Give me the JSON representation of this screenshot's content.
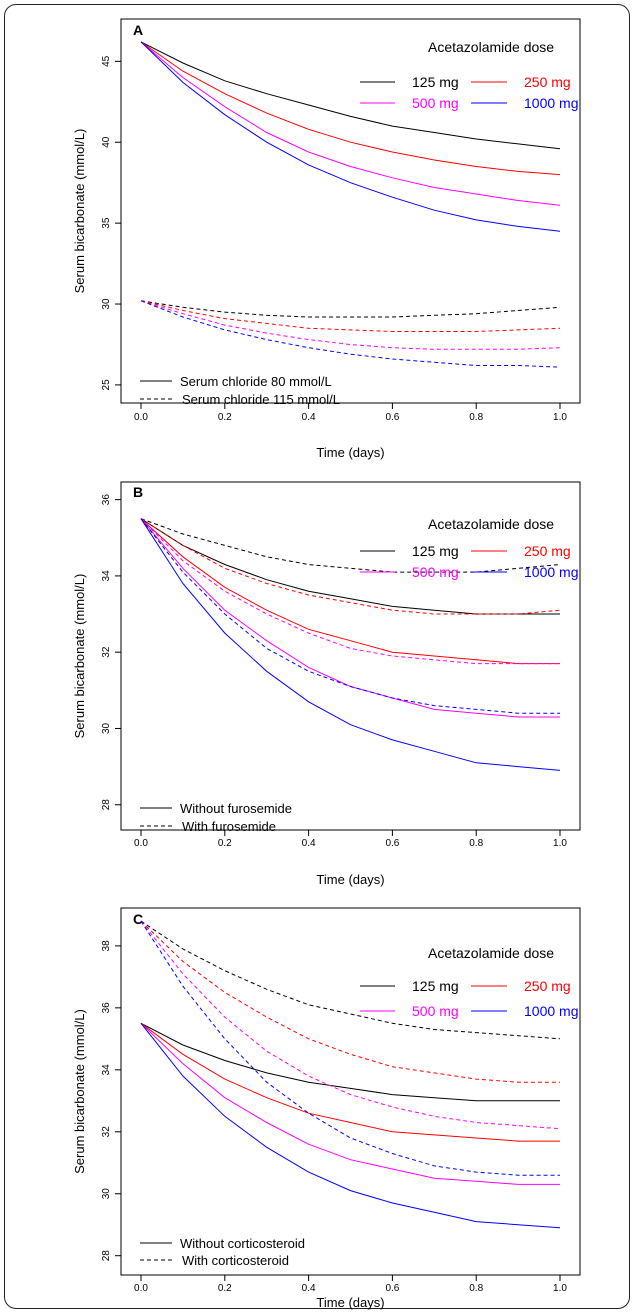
{
  "chart_data": [
    {
      "type": "line",
      "panel": "A",
      "xlabel": "Time (days)",
      "ylabel": "Serum bicarbonate (mmol/L)",
      "xlim": [
        0,
        1
      ],
      "ylim": [
        24.5,
        47.0
      ],
      "xticks": [
        "0.0",
        "0.2",
        "0.4",
        "0.6",
        "0.8",
        "1.0"
      ],
      "yticks": [
        25,
        30,
        35,
        40,
        45
      ],
      "legend_title": "Acetazolamide dose",
      "dose_legend": [
        {
          "label": "125 mg",
          "color": "#000000"
        },
        {
          "label": "250 mg",
          "color": "#ff0000"
        },
        {
          "label": "500 mg",
          "color": "#ff00ff"
        },
        {
          "label": "1000 mg",
          "color": "#0000ff"
        }
      ],
      "style_legend": [
        {
          "label": "Serum chloride 80 mmol/L",
          "dash": "solid"
        },
        {
          "label": "Serum chloride 115 mmol/L",
          "dash": "dashed"
        }
      ],
      "x": [
        0,
        0.1,
        0.2,
        0.3,
        0.4,
        0.5,
        0.6,
        0.7,
        0.8,
        0.9,
        1.0
      ],
      "series": [
        {
          "name": "125 mg",
          "style": "solid",
          "color": "#000000",
          "values": [
            46.2,
            44.9,
            43.8,
            43.0,
            42.3,
            41.6,
            41.0,
            40.6,
            40.2,
            39.9,
            39.6
          ]
        },
        {
          "name": "250 mg",
          "style": "solid",
          "color": "#ff0000",
          "values": [
            46.2,
            44.4,
            43.0,
            41.8,
            40.8,
            40.0,
            39.4,
            38.9,
            38.5,
            38.2,
            38.0
          ]
        },
        {
          "name": "500 mg",
          "style": "solid",
          "color": "#ff00ff",
          "values": [
            46.2,
            44.0,
            42.2,
            40.6,
            39.4,
            38.5,
            37.8,
            37.2,
            36.8,
            36.4,
            36.1
          ]
        },
        {
          "name": "1000 mg",
          "style": "solid",
          "color": "#0000ff",
          "values": [
            46.2,
            43.7,
            41.7,
            40.0,
            38.6,
            37.5,
            36.6,
            35.8,
            35.2,
            34.8,
            34.5
          ]
        },
        {
          "name": "125 mg",
          "style": "dashed",
          "color": "#000000",
          "values": [
            30.2,
            29.8,
            29.5,
            29.3,
            29.2,
            29.2,
            29.2,
            29.3,
            29.4,
            29.6,
            29.8
          ]
        },
        {
          "name": "250 mg",
          "style": "dashed",
          "color": "#ff0000",
          "values": [
            30.2,
            29.6,
            29.1,
            28.8,
            28.5,
            28.4,
            28.3,
            28.3,
            28.3,
            28.4,
            28.5
          ]
        },
        {
          "name": "500 mg",
          "style": "dashed",
          "color": "#ff00ff",
          "values": [
            30.2,
            29.4,
            28.7,
            28.2,
            27.8,
            27.5,
            27.3,
            27.2,
            27.2,
            27.2,
            27.3
          ]
        },
        {
          "name": "1000 mg",
          "style": "dashed",
          "color": "#0000ff",
          "values": [
            30.2,
            29.2,
            28.4,
            27.8,
            27.3,
            26.9,
            26.6,
            26.4,
            26.2,
            26.2,
            26.1
          ]
        }
      ]
    },
    {
      "type": "line",
      "panel": "B",
      "xlabel": "Time (days)",
      "ylabel": "Serum bicarbonate (mmol/L)",
      "xlim": [
        0,
        1
      ],
      "ylim": [
        27.6,
        36.2
      ],
      "xticks": [
        "0.0",
        "0.2",
        "0.4",
        "0.6",
        "0.8",
        "1.0"
      ],
      "yticks": [
        28,
        30,
        32,
        34,
        36
      ],
      "legend_title": "Acetazolamide dose",
      "dose_legend": [
        {
          "label": "125 mg",
          "color": "#000000"
        },
        {
          "label": "250 mg",
          "color": "#ff0000"
        },
        {
          "label": "500 mg",
          "color": "#ff00ff"
        },
        {
          "label": "1000 mg",
          "color": "#0000ff"
        }
      ],
      "style_legend": [
        {
          "label": "Without furosemide",
          "dash": "solid"
        },
        {
          "label": "With furosemide",
          "dash": "dashed"
        }
      ],
      "x": [
        0,
        0.1,
        0.2,
        0.3,
        0.4,
        0.5,
        0.6,
        0.7,
        0.8,
        0.9,
        1.0
      ],
      "series": [
        {
          "name": "125 mg",
          "style": "solid",
          "color": "#000000",
          "values": [
            35.5,
            34.8,
            34.3,
            33.9,
            33.6,
            33.4,
            33.2,
            33.1,
            33.0,
            33.0,
            33.0
          ]
        },
        {
          "name": "250 mg",
          "style": "solid",
          "color": "#ff0000",
          "values": [
            35.5,
            34.5,
            33.7,
            33.1,
            32.6,
            32.3,
            32.0,
            31.9,
            31.8,
            31.7,
            31.7
          ]
        },
        {
          "name": "500 mg",
          "style": "solid",
          "color": "#ff00ff",
          "values": [
            35.5,
            34.2,
            33.1,
            32.3,
            31.6,
            31.1,
            30.8,
            30.5,
            30.4,
            30.3,
            30.3
          ]
        },
        {
          "name": "1000 mg",
          "style": "solid",
          "color": "#0000ff",
          "values": [
            35.5,
            33.8,
            32.5,
            31.5,
            30.7,
            30.1,
            29.7,
            29.4,
            29.1,
            29.0,
            28.9
          ]
        },
        {
          "name": "125 mg",
          "style": "dashed",
          "color": "#000000",
          "values": [
            35.5,
            35.1,
            34.8,
            34.5,
            34.3,
            34.2,
            34.1,
            34.1,
            34.1,
            34.2,
            34.3
          ]
        },
        {
          "name": "250 mg",
          "style": "dashed",
          "color": "#ff0000",
          "values": [
            35.5,
            34.8,
            34.2,
            33.8,
            33.5,
            33.3,
            33.1,
            33.0,
            33.0,
            33.0,
            33.1
          ]
        },
        {
          "name": "500 mg",
          "style": "dashed",
          "color": "#ff00ff",
          "values": [
            35.5,
            34.4,
            33.6,
            33.0,
            32.5,
            32.1,
            31.9,
            31.8,
            31.7,
            31.7,
            31.7
          ]
        },
        {
          "name": "1000 mg",
          "style": "dashed",
          "color": "#0000ff",
          "values": [
            35.5,
            34.1,
            33.0,
            32.1,
            31.5,
            31.1,
            30.8,
            30.6,
            30.5,
            30.4,
            30.4
          ]
        }
      ]
    },
    {
      "type": "line",
      "panel": "C",
      "xlabel": "Time (days)",
      "ylabel": "Serum bicarbonate (mmol/L)",
      "xlim": [
        0,
        1
      ],
      "ylim": [
        27.7,
        38.9
      ],
      "xticks": [
        "0.0",
        "0.2",
        "0.4",
        "0.6",
        "0.8",
        "1.0"
      ],
      "yticks": [
        28,
        30,
        32,
        34,
        36,
        38
      ],
      "legend_title": "Acetazolamide dose",
      "dose_legend": [
        {
          "label": "125 mg",
          "color": "#000000"
        },
        {
          "label": "250 mg",
          "color": "#ff0000"
        },
        {
          "label": "500 mg",
          "color": "#ff00ff"
        },
        {
          "label": "1000 mg",
          "color": "#0000ff"
        }
      ],
      "style_legend": [
        {
          "label": "Without corticosteroid",
          "dash": "solid"
        },
        {
          "label": "With corticosteroid",
          "dash": "dashed"
        }
      ],
      "x": [
        0,
        0.1,
        0.2,
        0.3,
        0.4,
        0.5,
        0.6,
        0.7,
        0.8,
        0.9,
        1.0
      ],
      "series": [
        {
          "name": "125 mg",
          "style": "solid",
          "color": "#000000",
          "values": [
            35.5,
            34.8,
            34.3,
            33.9,
            33.6,
            33.4,
            33.2,
            33.1,
            33.0,
            33.0,
            33.0
          ]
        },
        {
          "name": "250 mg",
          "style": "solid",
          "color": "#ff0000",
          "values": [
            35.5,
            34.5,
            33.7,
            33.1,
            32.6,
            32.3,
            32.0,
            31.9,
            31.8,
            31.7,
            31.7
          ]
        },
        {
          "name": "500 mg",
          "style": "solid",
          "color": "#ff00ff",
          "values": [
            35.5,
            34.2,
            33.1,
            32.3,
            31.6,
            31.1,
            30.8,
            30.5,
            30.4,
            30.3,
            30.3
          ]
        },
        {
          "name": "1000 mg",
          "style": "solid",
          "color": "#0000ff",
          "values": [
            35.5,
            33.8,
            32.5,
            31.5,
            30.7,
            30.1,
            29.7,
            29.4,
            29.1,
            29.0,
            28.9
          ]
        },
        {
          "name": "125 mg",
          "style": "dashed",
          "color": "#000000",
          "values": [
            38.8,
            37.9,
            37.2,
            36.6,
            36.1,
            35.8,
            35.5,
            35.3,
            35.2,
            35.1,
            35.0
          ]
        },
        {
          "name": "250 mg",
          "style": "dashed",
          "color": "#ff0000",
          "values": [
            38.8,
            37.5,
            36.5,
            35.7,
            35.0,
            34.5,
            34.1,
            33.9,
            33.7,
            33.6,
            33.6
          ]
        },
        {
          "name": "500 mg",
          "style": "dashed",
          "color": "#ff00ff",
          "values": [
            38.8,
            37.1,
            35.7,
            34.6,
            33.8,
            33.2,
            32.8,
            32.5,
            32.3,
            32.2,
            32.1
          ]
        },
        {
          "name": "1000 mg",
          "style": "dashed",
          "color": "#0000ff",
          "values": [
            38.8,
            36.7,
            35.0,
            33.6,
            32.6,
            31.8,
            31.3,
            30.9,
            30.7,
            30.6,
            30.6
          ]
        }
      ]
    }
  ]
}
